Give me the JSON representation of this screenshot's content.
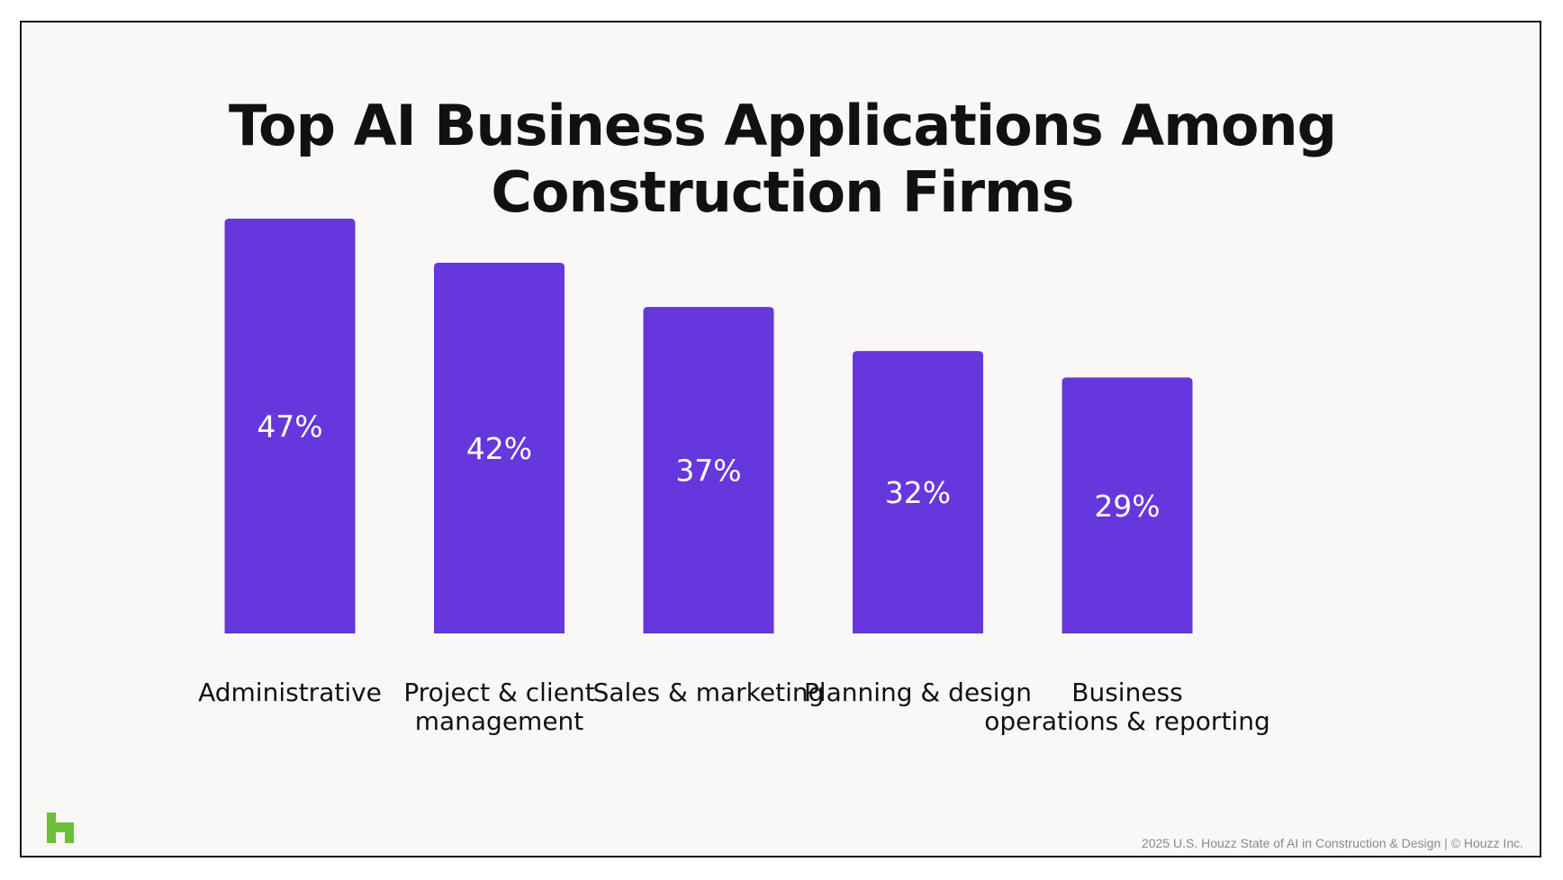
{
  "chart_data": {
    "type": "bar",
    "title_lines": [
      "Top AI Business Applications Among",
      "Construction Firms"
    ],
    "categories": [
      [
        "Administrative"
      ],
      [
        "Project & client",
        "management"
      ],
      [
        "Sales & marketing"
      ],
      [
        "Planning & design"
      ],
      [
        "Business",
        "operations & reporting"
      ]
    ],
    "values": [
      47,
      42,
      37,
      32,
      29
    ],
    "value_labels": [
      "47%",
      "42%",
      "37%",
      "32%",
      "29%"
    ],
    "unit": "%",
    "ylim": [
      0,
      47
    ],
    "bar_color": "#6637dc",
    "grid": false,
    "legend": "none"
  },
  "brand": {
    "logo_icon": "houzz-logo-icon",
    "logo_color": "#6cbf3a"
  },
  "footer": {
    "source": "2025 U.S. Houzz State of AI in Construction & Design | © Houzz Inc."
  }
}
